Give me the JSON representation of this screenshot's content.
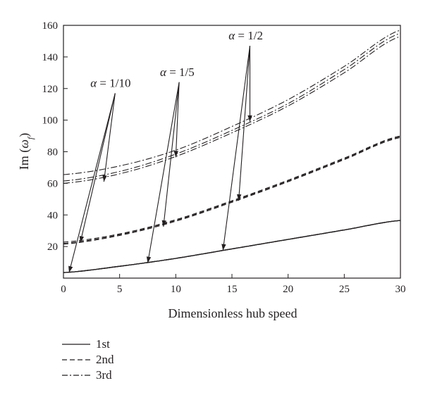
{
  "chart_data": {
    "type": "line",
    "xlabel": "Dimensionless hub speed",
    "ylabel_main": "Im (",
    "ylabel_omega": "ω",
    "ylabel_sub": "f",
    "ylabel_close": ")",
    "xlim": [
      0,
      30
    ],
    "ylim": [
      0,
      160
    ],
    "xticks": [
      0,
      5,
      10,
      15,
      20,
      25,
      30
    ],
    "yticks": [
      20,
      40,
      60,
      80,
      100,
      120,
      140,
      160
    ],
    "grid": false,
    "legend_position": "bottom-left",
    "series": [
      {
        "name": "1st",
        "style": "solid",
        "alpha": "1/10",
        "x": [
          0,
          5,
          10,
          15,
          20,
          25,
          30
        ],
        "y": [
          3.5,
          7.5,
          12.5,
          18.5,
          24.5,
          30.5,
          36.5
        ]
      },
      {
        "name": "1st",
        "style": "solid",
        "alpha": "1/5",
        "x": [
          0,
          5,
          10,
          15,
          20,
          25,
          30
        ],
        "y": [
          3.5,
          7.5,
          12.5,
          18.5,
          24.5,
          30.5,
          36.5
        ]
      },
      {
        "name": "1st",
        "style": "solid",
        "alpha": "1/2",
        "x": [
          0,
          5,
          10,
          15,
          20,
          25,
          30
        ],
        "y": [
          3.5,
          7.5,
          12.5,
          18.5,
          24.5,
          30.5,
          36.5
        ]
      },
      {
        "name": "2nd",
        "style": "dashed",
        "alpha": "1/10",
        "x": [
          0,
          5,
          10,
          15,
          20,
          25,
          30
        ],
        "y": [
          21.5,
          27,
          36,
          48,
          61,
          75,
          89
        ]
      },
      {
        "name": "2nd",
        "style": "dashed",
        "alpha": "1/5",
        "x": [
          0,
          5,
          10,
          15,
          20,
          25,
          30
        ],
        "y": [
          22,
          27.5,
          36.5,
          48.5,
          61.5,
          75.5,
          89.5
        ]
      },
      {
        "name": "2nd",
        "style": "dashed",
        "alpha": "1/2",
        "x": [
          0,
          5,
          10,
          15,
          20,
          25,
          30
        ],
        "y": [
          22.8,
          28,
          37,
          49,
          62,
          76,
          90
        ]
      },
      {
        "name": "3rd",
        "style": "dashdot",
        "alpha": "1/10",
        "x": [
          0,
          5,
          10,
          15,
          20,
          25,
          30
        ],
        "y": [
          60,
          66,
          77,
          92,
          109,
          130,
          153
        ]
      },
      {
        "name": "3rd",
        "style": "dashdot",
        "alpha": "1/5",
        "x": [
          0,
          5,
          10,
          15,
          20,
          25,
          30
        ],
        "y": [
          61.5,
          67.5,
          78.5,
          93.5,
          110.5,
          132,
          155
        ]
      },
      {
        "name": "3rd",
        "style": "dashdot",
        "alpha": "1/2",
        "x": [
          0,
          5,
          10,
          15,
          20,
          25,
          30
        ],
        "y": [
          65.5,
          71,
          81,
          96,
          113,
          134,
          157
        ]
      }
    ],
    "annotations": [
      {
        "label": "α = 1/10",
        "text_x": 2.4,
        "text_y": 121,
        "origin_x": 4.6,
        "origin_y": 117,
        "targets": [
          [
            0.5,
            3.5
          ],
          [
            1.5,
            22.5
          ],
          [
            3.6,
            61
          ]
        ]
      },
      {
        "label": "α = 1/5",
        "text_x": 8.6,
        "text_y": 128,
        "origin_x": 10.3,
        "origin_y": 124,
        "targets": [
          [
            7.5,
            9.5
          ],
          [
            8.9,
            32.5
          ],
          [
            10.0,
            76.5
          ]
        ]
      },
      {
        "label": "α = 1/2",
        "text_x": 14.7,
        "text_y": 151,
        "origin_x": 16.6,
        "origin_y": 147,
        "targets": [
          [
            14.2,
            17.5
          ],
          [
            15.6,
            49
          ],
          [
            16.6,
            99
          ]
        ]
      }
    ],
    "legend": [
      {
        "label": "1st",
        "style": "solid"
      },
      {
        "label": "2nd",
        "style": "dashed"
      },
      {
        "label": "3rd",
        "style": "dashdot"
      }
    ]
  }
}
